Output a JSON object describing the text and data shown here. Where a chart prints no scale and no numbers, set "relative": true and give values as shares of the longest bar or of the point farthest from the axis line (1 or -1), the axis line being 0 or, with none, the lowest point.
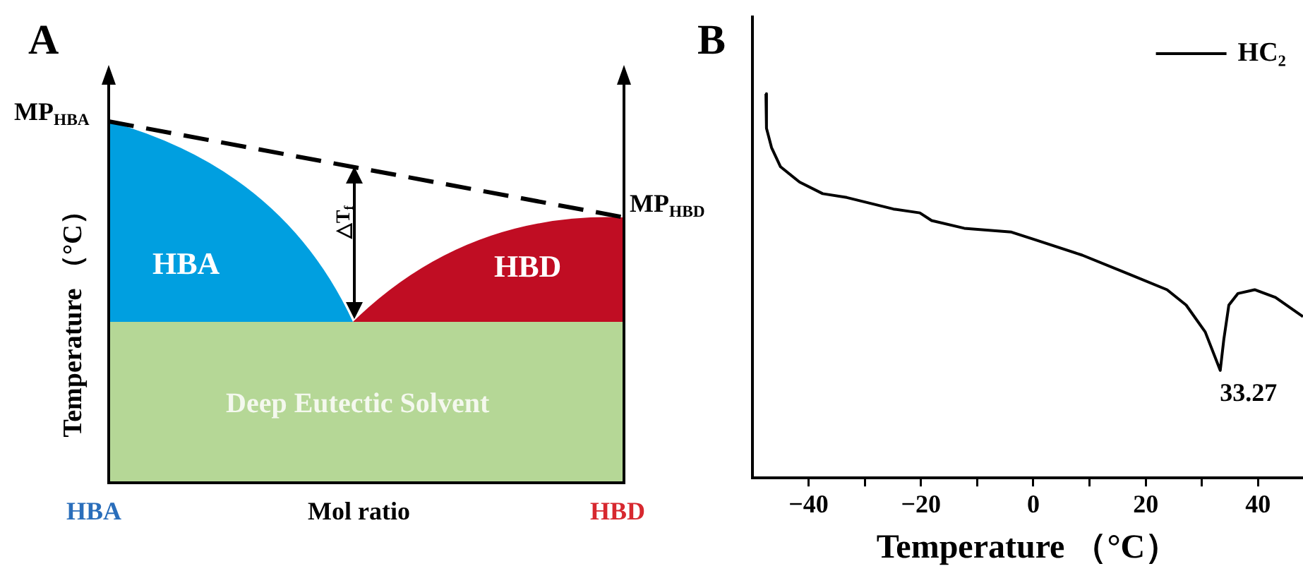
{
  "chart_data": [
    {
      "type": "other",
      "title": "A",
      "xlabel": "Mol ratio",
      "ylabel": "Temperature （°C）",
      "annotations": [
        "MP$_{HBA}$",
        "MP$_{HBD}$",
        "HBA",
        "HBD",
        "Deep Eutectic Solvent",
        "△T$_{f}$",
        "HBA",
        "HBD"
      ]
    },
    {
      "type": "line",
      "title": "B",
      "xlabel": "Temperature （°C）",
      "relative": true,
      "legend": "top right",
      "marker": "none",
      "line_style": "solid",
      "xlim": [
        -50,
        48
      ],
      "xticks": [
        -40,
        {
          "value": -30,
          "label": null
        },
        -20,
        {
          "value": -10,
          "label": null
        },
        0,
        {
          "value": 10,
          "label": null
        },
        20,
        {
          "value": 30,
          "label": null
        },
        40
      ],
      "x": [
        -47.6,
        -47.5,
        -46.6,
        -45.0,
        -41.6,
        -37.5,
        -33.2,
        -24.9,
        -20.2,
        -18.1,
        -12.3,
        -3.9,
        0.3,
        8.7,
        17.1,
        23.8,
        27.2,
        30.6,
        33.27,
        33.9,
        34.8,
        36.4,
        39.4,
        43.1,
        48.0
      ],
      "series": [
        {
          "name": "HC₂",
          "color": "#000000",
          "values": [
            1,
            0.91,
            0.86,
            0.81,
            0.77,
            0.74,
            0.73,
            0.7,
            0.69,
            0.67,
            0.65,
            0.64,
            0.62,
            0.58,
            0.53,
            0.49,
            0.45,
            0.38,
            0.28,
            0.36,
            0.45,
            0.48,
            0.49,
            0.47,
            0.42
          ]
        }
      ],
      "annotations": [
        {
          "text": "33.27",
          "x": 33.27,
          "y": 0.28
        }
      ]
    }
  ]
}
